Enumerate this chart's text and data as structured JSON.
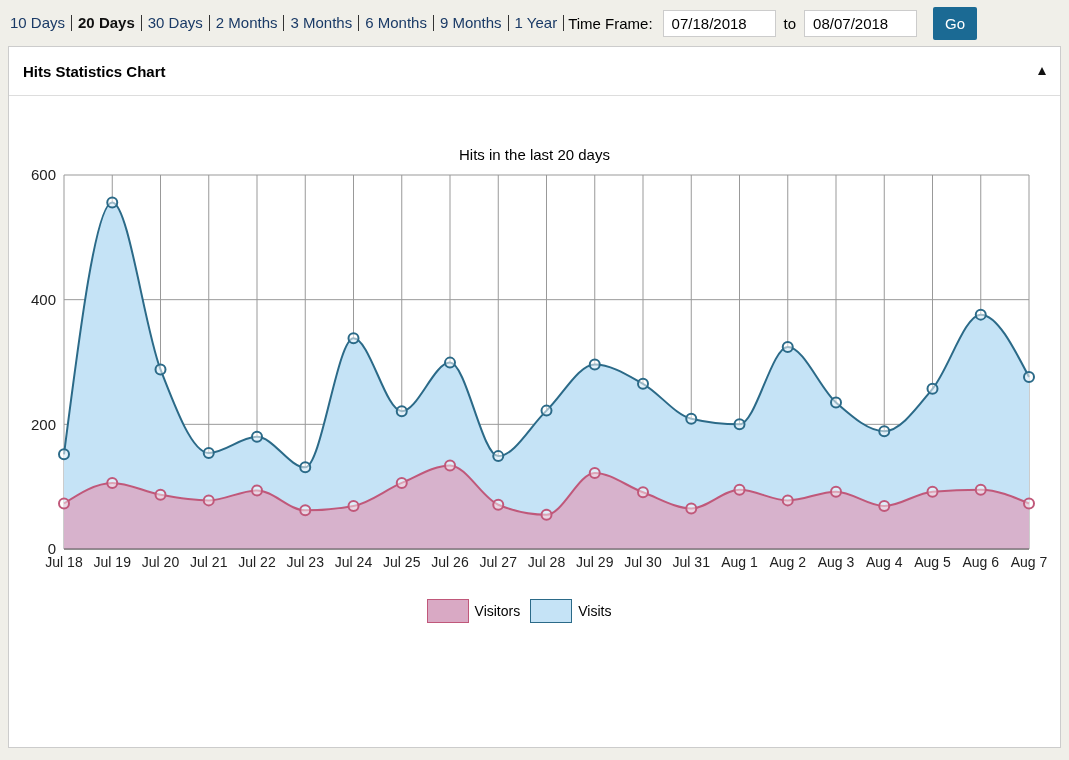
{
  "chart_data": {
    "type": "area",
    "title": "Hits in the last 20 days",
    "annotations": [
      "10 Days",
      "20 Days",
      "30 Days",
      "2 Months",
      "3 Months",
      "6 Months",
      "9 Months",
      "1 Year",
      "Time Frame:",
      "07/18/2018",
      "to",
      "08/07/2018",
      "Go",
      "Hits Statistics Chart"
    ],
    "categories": [
      "Jul 18",
      "Jul 19",
      "Jul 20",
      "Jul 21",
      "Jul 22",
      "Jul 23",
      "Jul 24",
      "Jul 25",
      "Jul 26",
      "Jul 27",
      "Jul 28",
      "Jul 29",
      "Jul 30",
      "Jul 31",
      "Aug 1",
      "Aug 2",
      "Aug 3",
      "Aug 4",
      "Aug 5",
      "Aug 6",
      "Aug 7"
    ],
    "series": [
      {
        "name": "Visitors",
        "color": "#c0587a",
        "values": [
          73,
          106,
          87,
          78,
          94,
          62,
          69,
          106,
          134,
          71,
          55,
          122,
          91,
          65,
          95,
          78,
          92,
          69,
          92,
          95,
          73
        ]
      },
      {
        "name": "Visits",
        "color": "#2b6a88",
        "values": [
          152,
          556,
          288,
          154,
          180,
          131,
          338,
          221,
          299,
          149,
          222,
          296,
          265,
          209,
          200,
          324,
          235,
          189,
          257,
          376,
          276
        ]
      }
    ],
    "ylim": [
      0,
      600
    ],
    "yticks": [
      0,
      200,
      400,
      600
    ],
    "grid": true,
    "legend": "bottom",
    "marker": "circle"
  }
}
